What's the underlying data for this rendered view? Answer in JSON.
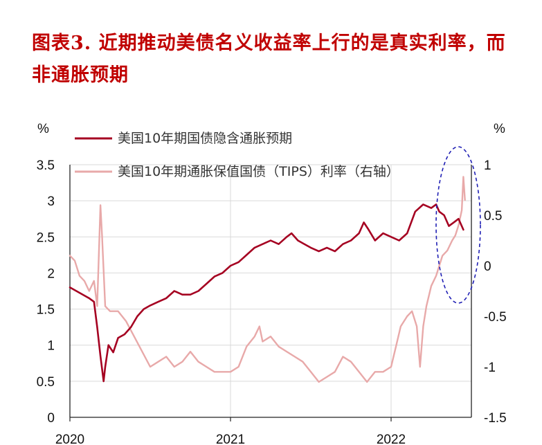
{
  "page": {
    "title": "图表3. 近期推动美债名义收益率上行的是真实利率，而非通胀预期"
  },
  "chart_data": {
    "type": "line",
    "left_unit": "%",
    "right_unit": "%",
    "y_left": {
      "range": [
        0,
        3.5
      ],
      "ticks": [
        "0",
        "0.5",
        "1",
        "1.5",
        "2",
        "2.5",
        "3",
        "3.5"
      ]
    },
    "y_right": {
      "range": [
        -1.5,
        1
      ],
      "ticks": [
        "-1.5",
        "-1",
        "-0.5",
        "0",
        "0.5",
        "1"
      ]
    },
    "x_ticks": [
      "2020",
      "2021",
      "2022"
    ],
    "grid": true,
    "legend_position": "top",
    "series": [
      {
        "name": "美国10年期国债隐含通胀预期",
        "axis": "left",
        "color": "#a50021",
        "points": [
          [
            2020.0,
            1.8
          ],
          [
            2020.04,
            1.75
          ],
          [
            2020.08,
            1.7
          ],
          [
            2020.12,
            1.65
          ],
          [
            2020.15,
            1.6
          ],
          [
            2020.17,
            1.25
          ],
          [
            2020.19,
            0.85
          ],
          [
            2020.21,
            0.5
          ],
          [
            2020.22,
            0.7
          ],
          [
            2020.24,
            1.0
          ],
          [
            2020.27,
            0.9
          ],
          [
            2020.3,
            1.1
          ],
          [
            2020.34,
            1.15
          ],
          [
            2020.38,
            1.25
          ],
          [
            2020.42,
            1.4
          ],
          [
            2020.46,
            1.5
          ],
          [
            2020.5,
            1.55
          ],
          [
            2020.55,
            1.6
          ],
          [
            2020.6,
            1.65
          ],
          [
            2020.65,
            1.75
          ],
          [
            2020.7,
            1.7
          ],
          [
            2020.75,
            1.7
          ],
          [
            2020.8,
            1.75
          ],
          [
            2020.85,
            1.85
          ],
          [
            2020.9,
            1.95
          ],
          [
            2020.95,
            2.0
          ],
          [
            2021.0,
            2.1
          ],
          [
            2021.05,
            2.15
          ],
          [
            2021.1,
            2.25
          ],
          [
            2021.15,
            2.35
          ],
          [
            2021.2,
            2.4
          ],
          [
            2021.25,
            2.45
          ],
          [
            2021.3,
            2.4
          ],
          [
            2021.35,
            2.5
          ],
          [
            2021.38,
            2.55
          ],
          [
            2021.42,
            2.45
          ],
          [
            2021.46,
            2.4
          ],
          [
            2021.5,
            2.35
          ],
          [
            2021.55,
            2.3
          ],
          [
            2021.6,
            2.35
          ],
          [
            2021.65,
            2.3
          ],
          [
            2021.7,
            2.4
          ],
          [
            2021.75,
            2.45
          ],
          [
            2021.8,
            2.55
          ],
          [
            2021.83,
            2.7
          ],
          [
            2021.86,
            2.6
          ],
          [
            2021.9,
            2.45
          ],
          [
            2021.95,
            2.55
          ],
          [
            2022.0,
            2.5
          ],
          [
            2022.05,
            2.45
          ],
          [
            2022.1,
            2.55
          ],
          [
            2022.15,
            2.85
          ],
          [
            2022.2,
            2.95
          ],
          [
            2022.25,
            2.9
          ],
          [
            2022.28,
            2.95
          ],
          [
            2022.3,
            2.85
          ],
          [
            2022.33,
            2.8
          ],
          [
            2022.36,
            2.65
          ],
          [
            2022.39,
            2.7
          ],
          [
            2022.42,
            2.75
          ],
          [
            2022.45,
            2.6
          ]
        ]
      },
      {
        "name": "美国10年期通胀保值国债（TIPS）利率（右轴）",
        "axis": "right",
        "color": "#e8a9a9",
        "points": [
          [
            2020.0,
            0.1
          ],
          [
            2020.03,
            0.05
          ],
          [
            2020.06,
            -0.1
          ],
          [
            2020.09,
            -0.15
          ],
          [
            2020.12,
            -0.25
          ],
          [
            2020.15,
            -0.15
          ],
          [
            2020.17,
            -0.4
          ],
          [
            2020.19,
            0.6
          ],
          [
            2020.2,
            0.3
          ],
          [
            2020.22,
            -0.4
          ],
          [
            2020.25,
            -0.45
          ],
          [
            2020.3,
            -0.45
          ],
          [
            2020.35,
            -0.55
          ],
          [
            2020.4,
            -0.7
          ],
          [
            2020.45,
            -0.85
          ],
          [
            2020.5,
            -1.0
          ],
          [
            2020.55,
            -0.95
          ],
          [
            2020.6,
            -0.9
          ],
          [
            2020.65,
            -1.0
          ],
          [
            2020.7,
            -0.95
          ],
          [
            2020.75,
            -0.85
          ],
          [
            2020.8,
            -0.95
          ],
          [
            2020.85,
            -1.0
          ],
          [
            2020.9,
            -1.05
          ],
          [
            2020.95,
            -1.05
          ],
          [
            2021.0,
            -1.05
          ],
          [
            2021.05,
            -1.0
          ],
          [
            2021.1,
            -0.8
          ],
          [
            2021.15,
            -0.7
          ],
          [
            2021.18,
            -0.6
          ],
          [
            2021.2,
            -0.75
          ],
          [
            2021.25,
            -0.7
          ],
          [
            2021.3,
            -0.8
          ],
          [
            2021.35,
            -0.85
          ],
          [
            2021.4,
            -0.9
          ],
          [
            2021.45,
            -0.95
          ],
          [
            2021.5,
            -1.05
          ],
          [
            2021.55,
            -1.15
          ],
          [
            2021.6,
            -1.1
          ],
          [
            2021.65,
            -1.05
          ],
          [
            2021.7,
            -0.9
          ],
          [
            2021.75,
            -0.95
          ],
          [
            2021.8,
            -1.05
          ],
          [
            2021.85,
            -1.15
          ],
          [
            2021.9,
            -1.05
          ],
          [
            2021.95,
            -1.05
          ],
          [
            2022.0,
            -1.0
          ],
          [
            2022.03,
            -0.8
          ],
          [
            2022.06,
            -0.6
          ],
          [
            2022.1,
            -0.5
          ],
          [
            2022.13,
            -0.45
          ],
          [
            2022.16,
            -0.6
          ],
          [
            2022.18,
            -1.0
          ],
          [
            2022.2,
            -0.6
          ],
          [
            2022.22,
            -0.4
          ],
          [
            2022.25,
            -0.2
          ],
          [
            2022.28,
            -0.1
          ],
          [
            2022.3,
            0.0
          ],
          [
            2022.32,
            0.1
          ],
          [
            2022.35,
            0.15
          ],
          [
            2022.38,
            0.25
          ],
          [
            2022.4,
            0.3
          ],
          [
            2022.42,
            0.4
          ],
          [
            2022.44,
            0.55
          ],
          [
            2022.45,
            0.88
          ],
          [
            2022.46,
            0.65
          ]
        ]
      }
    ]
  }
}
